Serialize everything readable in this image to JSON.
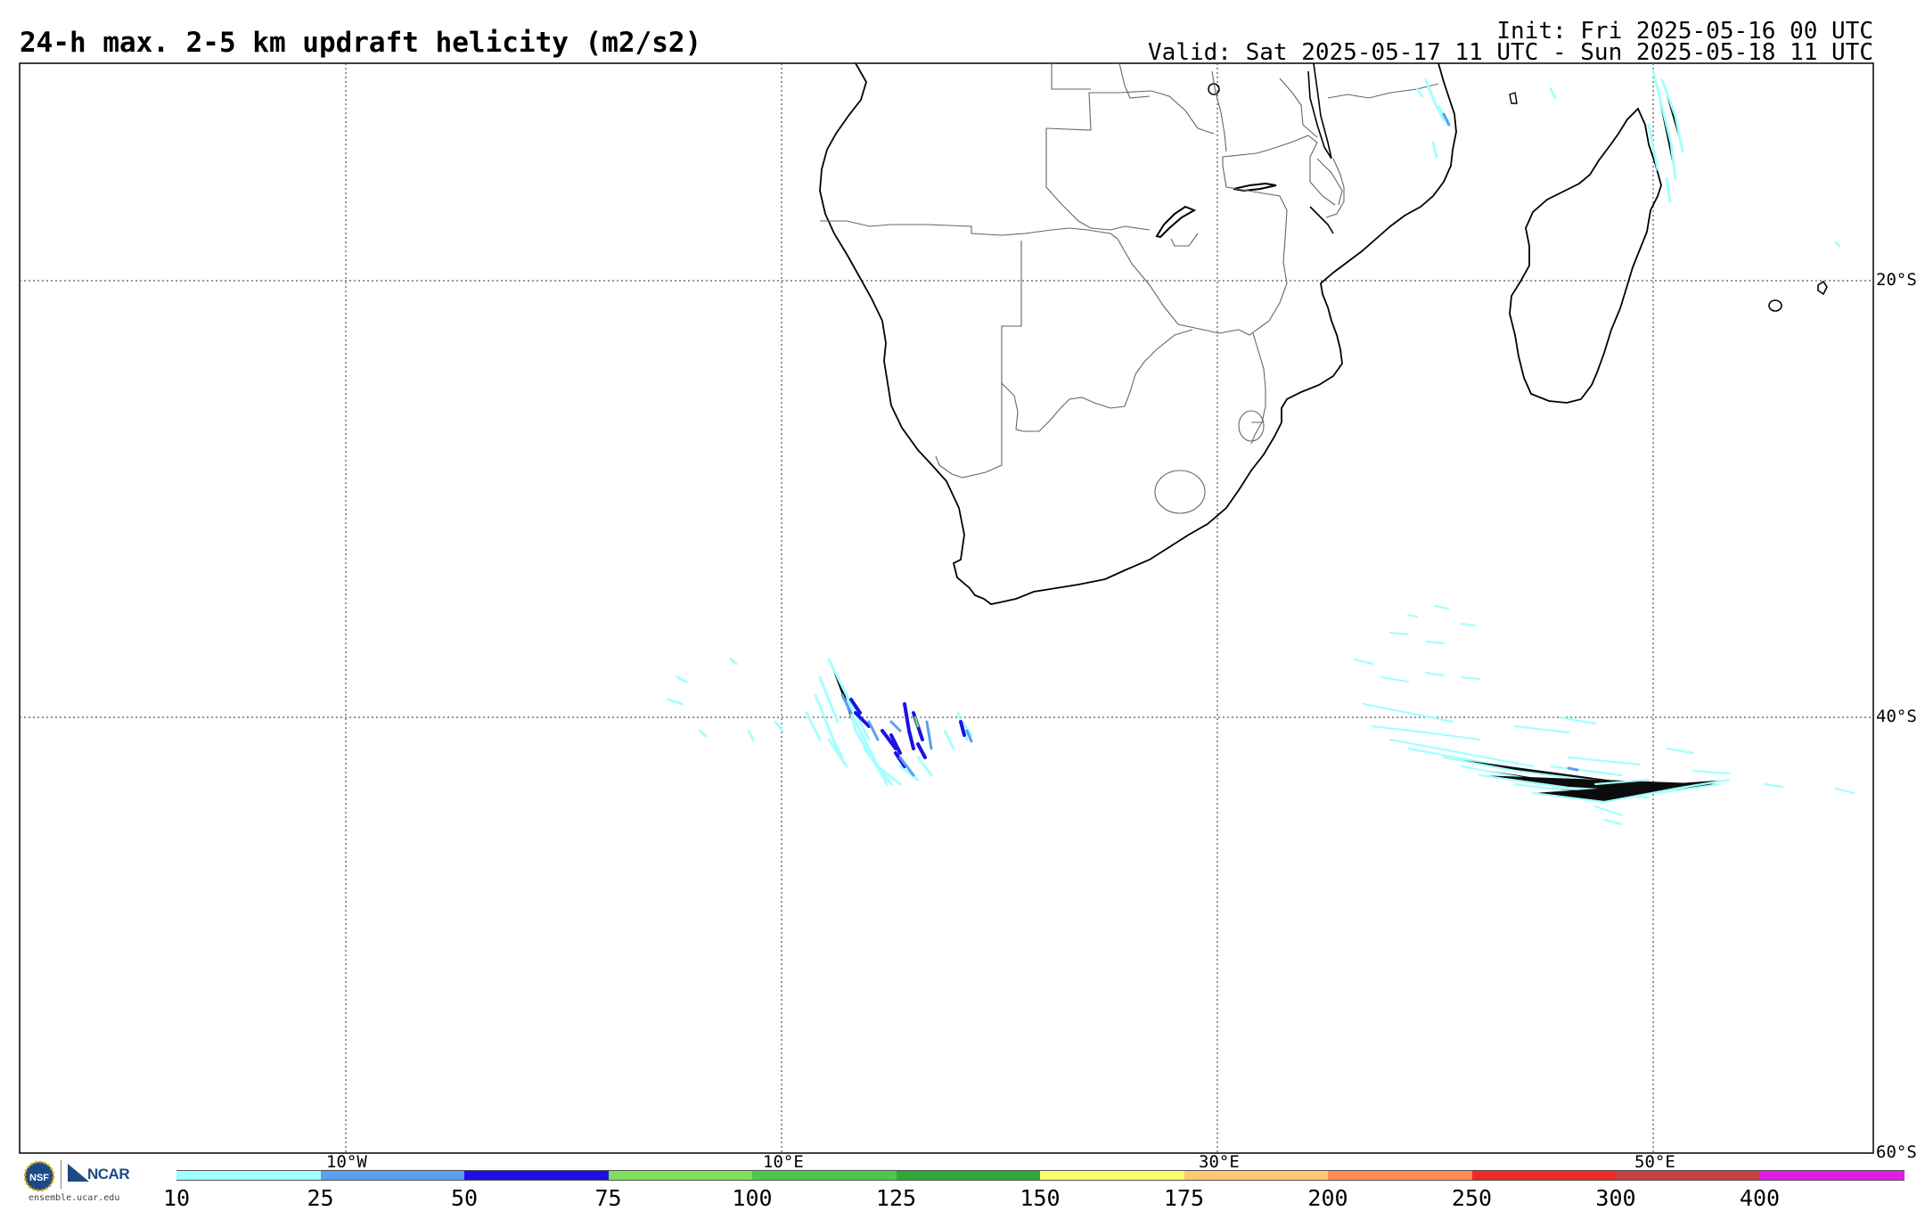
{
  "header": {
    "title": "24-h max. 2-5 km updraft helicity (m2/s2)",
    "init": "Init: Fri 2025-05-16 00 UTC",
    "valid": "Valid: Sat 2025-05-17 11 UTC - Sun 2025-05-18 11 UTC"
  },
  "map": {
    "lon_labels": [
      "10°W",
      "10°E",
      "30°E",
      "50°E"
    ],
    "lat_labels": [
      "20°S",
      "40°S",
      "60°S"
    ]
  },
  "colorbar": {
    "ticks": [
      "10",
      "25",
      "50",
      "75",
      "100",
      "125",
      "150",
      "175",
      "200",
      "250",
      "300",
      "400"
    ],
    "colors": [
      "#a0ffff",
      "#5a9ff0",
      "#1d10e6",
      "#7de05a",
      "#4ec84a",
      "#30a838",
      "#fdfd6a",
      "#fdc870",
      "#fd8c50",
      "#f02828",
      "#c84040",
      "#e61ae6"
    ]
  },
  "footer": {
    "logo_text": "NCAR",
    "url": "ensemble.ucar.edu"
  },
  "colors": {
    "grid": "#555555",
    "coast": "#000000",
    "border": "#666666"
  },
  "icons": [
    "nsf-logo-icon",
    "ncar-logo-icon"
  ]
}
